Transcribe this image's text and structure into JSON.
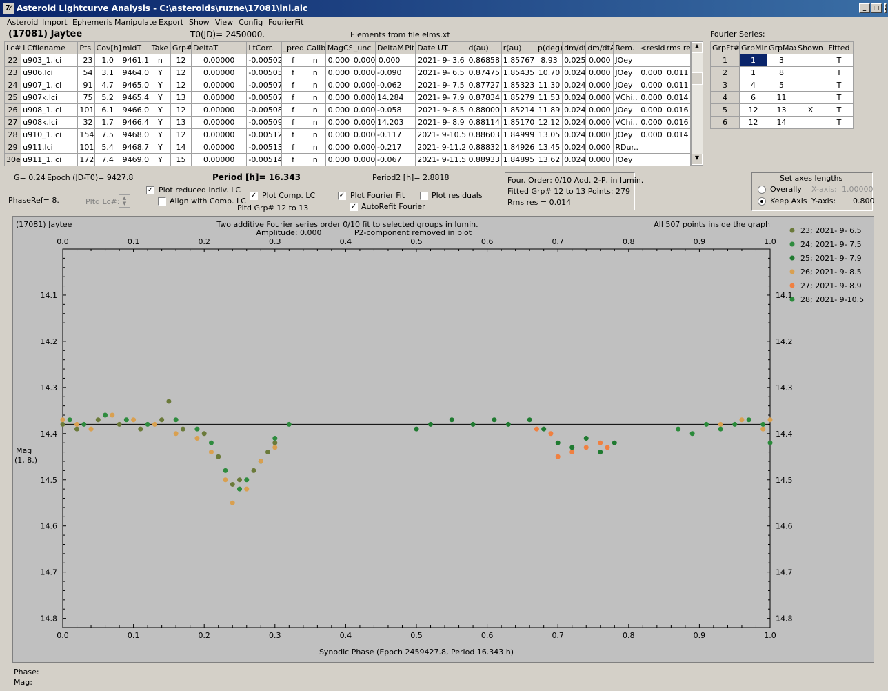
{
  "window": {
    "title": "Asteroid Lightcurve Analysis - C:\\asteroids\\ruzne\\17081\\ini.alc",
    "btn_min": "_",
    "btn_max": "□",
    "btn_close": "X"
  },
  "menu": [
    "Asteroid",
    "Import",
    "Ephemeris",
    "Manipulate",
    "Export",
    "Show",
    "View",
    "Config",
    "FourierFit"
  ],
  "header": {
    "asteroid": "(17081) Jaytee",
    "t0": "T0(JD)= 2450000.",
    "elements": "Elements from file elms.xt",
    "fourier_label": "Fourier Series:"
  },
  "lc_table": {
    "columns": [
      "Lc#",
      "LCfilename",
      "Pts",
      "Cov[h]",
      "midT",
      "Take",
      "Grp#",
      "DeltaT",
      "LtCorr.",
      "_pred.",
      "Calib.",
      "MagCS",
      "_unc",
      "DeltaM",
      "Plt",
      "Date UT",
      "d(au)",
      "r(au)",
      "p(deg)",
      "dm/dt",
      "dm/dtA",
      "Rem.",
      "<resid>",
      "rms res"
    ],
    "rows": [
      [
        "22",
        "u903_1.lci",
        "23",
        "1.0",
        "9461.1",
        "n",
        "12",
        "0.00000",
        "-0.00502",
        "f",
        "n",
        "0.000",
        "0.000",
        "0.000",
        "",
        "2021- 9- 3.6",
        "0.86858",
        "1.85767",
        "8.93",
        "0.025",
        "0.000",
        "JOey",
        "",
        ""
      ],
      [
        "23",
        "u906.lci",
        "54",
        "3.1",
        "9464.0",
        "Y",
        "12",
        "0.00000",
        "-0.00505",
        "f",
        "n",
        "0.000",
        "0.000",
        "-0.090",
        "",
        "2021- 9- 6.5",
        "0.87475",
        "1.85435",
        "10.70",
        "0.024",
        "0.000",
        "JOey",
        "0.000",
        "0.011"
      ],
      [
        "24",
        "u907_1.lci",
        "91",
        "4.7",
        "9465.0",
        "Y",
        "12",
        "0.00000",
        "-0.00507",
        "f",
        "n",
        "0.000",
        "0.000",
        "-0.062",
        "",
        "2021- 9- 7.5",
        "0.87727",
        "1.85323",
        "11.30",
        "0.024",
        "0.000",
        "JOey",
        "0.000",
        "0.011"
      ],
      [
        "25",
        "u907k.lci",
        "75",
        "5.2",
        "9465.4",
        "Y",
        "13",
        "0.00000",
        "-0.00507",
        "f",
        "n",
        "0.000",
        "0.000",
        "14.284",
        "",
        "2021- 9- 7.9",
        "0.87834",
        "1.85279",
        "11.53",
        "0.024",
        "0.000",
        "VChi...",
        "0.000",
        "0.014"
      ],
      [
        "26",
        "u908_1.lci",
        "101",
        "6.1",
        "9466.0",
        "Y",
        "12",
        "0.00000",
        "-0.00508",
        "f",
        "n",
        "0.000",
        "0.000",
        "-0.058",
        "",
        "2021- 9- 8.5",
        "0.88000",
        "1.85214",
        "11.89",
        "0.024",
        "0.000",
        "JOey",
        "0.000",
        "0.016"
      ],
      [
        "27",
        "u908k.lci",
        "32",
        "1.7",
        "9466.4",
        "Y",
        "13",
        "0.00000",
        "-0.00509",
        "f",
        "n",
        "0.000",
        "0.000",
        "14.203",
        "",
        "2021- 9- 8.9",
        "0.88114",
        "1.85170",
        "12.12",
        "0.024",
        "0.000",
        "VChi...",
        "0.000",
        "0.016"
      ],
      [
        "28",
        "u910_1.lci",
        "154",
        "7.5",
        "9468.0",
        "Y",
        "12",
        "0.00000",
        "-0.00512",
        "f",
        "n",
        "0.000",
        "0.000",
        "-0.117",
        "",
        "2021- 9-10.5",
        "0.88603",
        "1.84999",
        "13.05",
        "0.024",
        "0.000",
        "JOey",
        "0.000",
        "0.014"
      ],
      [
        "29",
        "u911.lci",
        "101",
        "5.4",
        "9468.7",
        "Y",
        "14",
        "0.00000",
        "-0.00513",
        "f",
        "n",
        "0.000",
        "0.000",
        "-0.217",
        "",
        "2021- 9-11.2",
        "0.88832",
        "1.84926",
        "13.45",
        "0.024",
        "0.000",
        "RDur...",
        "",
        ""
      ],
      [
        "30e",
        "u911_1.lci",
        "172",
        "7.4",
        "9469.0",
        "Y",
        "15",
        "0.00000",
        "-0.00514",
        "f",
        "n",
        "0.000",
        "0.000",
        "-0.067",
        "",
        "2021- 9-11.5",
        "0.88933",
        "1.84895",
        "13.62",
        "0.024",
        "0.000",
        "JOey",
        "",
        ""
      ]
    ]
  },
  "fourier_table": {
    "columns": [
      "GrpFt#",
      "GrpMin",
      "GrpMax",
      "Shown",
      "Fitted"
    ],
    "rows": [
      [
        "1",
        "1",
        "3",
        "",
        "T"
      ],
      [
        "2",
        "1",
        "8",
        "",
        "T"
      ],
      [
        "3",
        "4",
        "5",
        "",
        "T"
      ],
      [
        "4",
        "6",
        "11",
        "",
        "T"
      ],
      [
        "5",
        "12",
        "13",
        "X",
        "T"
      ],
      [
        "6",
        "12",
        "14",
        "",
        "T"
      ]
    ]
  },
  "controls": {
    "g": "G= 0.24",
    "epoch": "Epoch (JD-T0)= 9427.8",
    "period": "Period [h]= 16.343",
    "period2": "Period2 [h]= 2.8818",
    "phaseref": "PhaseRef= 8.",
    "pltd_lc": "Pltd Lc#:",
    "plot_reduced": "Plot reduced indiv. LC",
    "align": "Align with Comp. LC",
    "plot_comp": "Plot Comp. LC",
    "pltd_grp": "Pltd Grp#  12 to   13",
    "plot_fourier": "Plot Fourier Fit",
    "autorefit": "AutoRefit Fourier",
    "plot_resid": "Plot residuals",
    "info1": "Four. Order:  0/10    Add. 2-P, in lumin.",
    "info2": "Fitted Grp# 12 to 13 Points: 279",
    "info3": "Rms res      = 0.014",
    "axes_title": "Set axes lengths",
    "overally": "Overally",
    "keep_axis": "Keep Axis",
    "xaxis_label": "X-axis:",
    "xaxis_val": "1.00000",
    "yaxis_label": "Y-axis:",
    "yaxis_val": "0.800"
  },
  "status": {
    "phase": "Phase:",
    "mag": "Mag:"
  },
  "chart_data": {
    "type": "scatter",
    "title": "Two additive Fourier series order 0/10 fit to selected groups in lumin.",
    "subtitle1": "Amplitude: 0.000",
    "subtitle2": "P2-component removed in plot",
    "top_left": "(17081) Jaytee",
    "top_right": "All 507 points inside the graph",
    "xlabel": "Synodic Phase (Epoch 2459427.8, Period 16.343 h)",
    "ylabel": "Mag",
    "ylabel2": "(1, 8.)",
    "xlim": [
      0,
      1
    ],
    "ylim": [
      14.0,
      14.82
    ],
    "y_inverted": true,
    "xticks": [
      "0.0",
      "0.1",
      "0.2",
      "0.3",
      "0.4",
      "0.5",
      "0.6",
      "0.7",
      "0.8",
      "0.9",
      "1.0"
    ],
    "yticks": [
      "14.1",
      "14.2",
      "14.3",
      "14.4",
      "14.5",
      "14.6",
      "14.7",
      "14.8"
    ],
    "fit_line_y": 14.38,
    "series": [
      {
        "name": "23; 2021- 9- 6.5",
        "color": "#6b7a3a",
        "points": [
          [
            0.0,
            14.38
          ],
          [
            0.02,
            14.39
          ],
          [
            0.05,
            14.37
          ],
          [
            0.08,
            14.38
          ],
          [
            0.11,
            14.39
          ],
          [
            0.14,
            14.37
          ],
          [
            0.15,
            14.33
          ],
          [
            0.17,
            14.39
          ],
          [
            0.2,
            14.4
          ],
          [
            0.22,
            14.45
          ],
          [
            0.24,
            14.51
          ],
          [
            0.25,
            14.5
          ],
          [
            0.27,
            14.48
          ],
          [
            0.29,
            14.44
          ],
          [
            0.3,
            14.42
          ]
        ]
      },
      {
        "name": "24; 2021- 9- 7.5",
        "color": "#2e8b3e",
        "points": [
          [
            0.01,
            14.37
          ],
          [
            0.03,
            14.38
          ],
          [
            0.06,
            14.36
          ],
          [
            0.09,
            14.37
          ],
          [
            0.12,
            14.38
          ],
          [
            0.16,
            14.37
          ],
          [
            0.19,
            14.39
          ],
          [
            0.21,
            14.42
          ],
          [
            0.23,
            14.48
          ],
          [
            0.25,
            14.52
          ],
          [
            0.26,
            14.5
          ],
          [
            0.28,
            14.46
          ],
          [
            0.3,
            14.41
          ],
          [
            0.32,
            14.38
          ]
        ]
      },
      {
        "name": "25; 2021- 9- 7.9",
        "color": "#1f7a30",
        "points": [
          [
            0.5,
            14.39
          ],
          [
            0.52,
            14.38
          ],
          [
            0.55,
            14.37
          ],
          [
            0.58,
            14.38
          ],
          [
            0.61,
            14.37
          ],
          [
            0.63,
            14.38
          ],
          [
            0.66,
            14.37
          ],
          [
            0.68,
            14.39
          ],
          [
            0.7,
            14.42
          ],
          [
            0.72,
            14.43
          ],
          [
            0.74,
            14.41
          ],
          [
            0.76,
            14.44
          ],
          [
            0.78,
            14.42
          ]
        ]
      },
      {
        "name": "26; 2021- 9- 8.5",
        "color": "#d9a050",
        "points": [
          [
            0.0,
            14.37
          ],
          [
            0.02,
            14.38
          ],
          [
            0.04,
            14.39
          ],
          [
            0.07,
            14.36
          ],
          [
            0.1,
            14.37
          ],
          [
            0.13,
            14.38
          ],
          [
            0.16,
            14.4
          ],
          [
            0.19,
            14.41
          ],
          [
            0.21,
            14.44
          ],
          [
            0.23,
            14.5
          ],
          [
            0.24,
            14.55
          ],
          [
            0.26,
            14.52
          ],
          [
            0.28,
            14.46
          ],
          [
            0.3,
            14.43
          ],
          [
            0.93,
            14.38
          ],
          [
            0.96,
            14.37
          ],
          [
            0.99,
            14.39
          ],
          [
            1.0,
            14.37
          ]
        ]
      },
      {
        "name": "27; 2021- 9- 8.9",
        "color": "#f08040",
        "points": [
          [
            0.67,
            14.39
          ],
          [
            0.69,
            14.4
          ],
          [
            0.7,
            14.45
          ],
          [
            0.72,
            14.44
          ],
          [
            0.74,
            14.43
          ],
          [
            0.76,
            14.42
          ],
          [
            0.77,
            14.43
          ]
        ]
      },
      {
        "name": "28; 2021- 9-10.5",
        "color": "#2a8a3a",
        "points": [
          [
            0.87,
            14.39
          ],
          [
            0.89,
            14.4
          ],
          [
            0.91,
            14.38
          ],
          [
            0.93,
            14.39
          ],
          [
            0.95,
            14.38
          ],
          [
            0.97,
            14.37
          ],
          [
            0.99,
            14.38
          ],
          [
            1.0,
            14.42
          ]
        ]
      }
    ]
  }
}
